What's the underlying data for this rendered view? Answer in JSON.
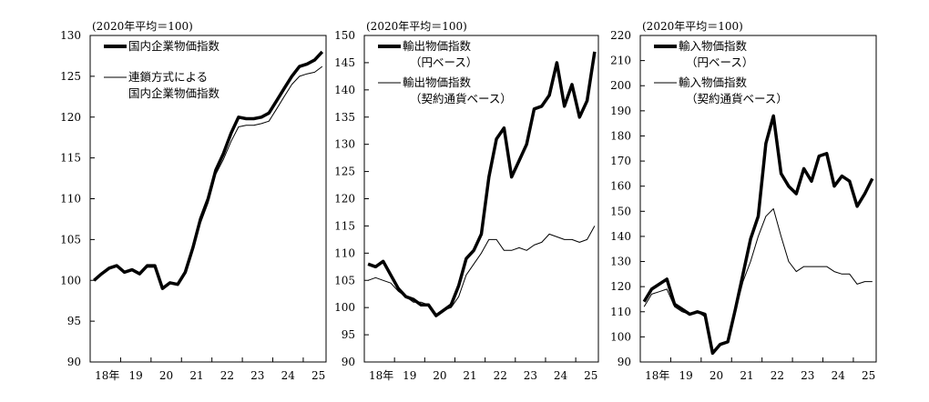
{
  "chart_data": [
    {
      "type": "line",
      "unit_note": "(2020年平均＝100)",
      "ylim": [
        90,
        130
      ],
      "yticks": [
        90,
        95,
        100,
        105,
        110,
        115,
        120,
        125,
        130
      ],
      "xtick_labels": [
        "18年",
        "19",
        "20",
        "21",
        "22",
        "23",
        "24",
        "25"
      ],
      "x": [
        "2018Q1",
        "2018Q2",
        "2018Q3",
        "2018Q4",
        "2019Q1",
        "2019Q2",
        "2019Q3",
        "2019Q4",
        "2020Q1",
        "2020Q2",
        "2020Q3",
        "2020Q4",
        "2021Q1",
        "2021Q2",
        "2021Q3",
        "2021Q4",
        "2022Q1",
        "2022Q2",
        "2022Q3",
        "2022Q4",
        "2023Q1",
        "2023Q2",
        "2023Q3",
        "2023Q4",
        "2024Q1",
        "2024Q2",
        "2024Q3",
        "2024Q4",
        "2025Q1",
        "2025Q2",
        "2025Q3"
      ],
      "series": [
        {
          "name": "国内企業物価指数",
          "style": "thick",
          "values": [
            100,
            100.8,
            101.5,
            101.8,
            101,
            101.3,
            100.8,
            101.8,
            101.8,
            99,
            99.7,
            99.5,
            101,
            104,
            107.5,
            110,
            113.5,
            115.5,
            118,
            120,
            119.8,
            119.8,
            120,
            120.5,
            122,
            123.5,
            125,
            126.2,
            126.5,
            127,
            128
          ]
        },
        {
          "name": "連鎖方式による\n国内企業物価指数",
          "name_lines": [
            "連鎖方式による",
            "国内企業物価指数"
          ],
          "style": "thin",
          "values": [
            100,
            100.7,
            101.4,
            101.7,
            100.9,
            101.2,
            100.7,
            101.6,
            101.6,
            98.9,
            99.6,
            99.4,
            100.8,
            103.7,
            107,
            109.5,
            113,
            114.8,
            117,
            118.8,
            119,
            119,
            119.2,
            119.5,
            121,
            122.5,
            124,
            125,
            125.3,
            125.5,
            126.2
          ]
        }
      ],
      "grid": false,
      "legend": "top-left"
    },
    {
      "type": "line",
      "unit_note": "(2020年平均＝100)",
      "ylim": [
        90,
        150
      ],
      "yticks": [
        90,
        95,
        100,
        105,
        110,
        115,
        120,
        125,
        130,
        135,
        140,
        145,
        150
      ],
      "xtick_labels": [
        "18年",
        "19",
        "20",
        "21",
        "22",
        "23",
        "24",
        "25"
      ],
      "x": [
        "2018Q1",
        "2018Q2",
        "2018Q3",
        "2018Q4",
        "2019Q1",
        "2019Q2",
        "2019Q3",
        "2019Q4",
        "2020Q1",
        "2020Q2",
        "2020Q3",
        "2020Q4",
        "2021Q1",
        "2021Q2",
        "2021Q3",
        "2021Q4",
        "2022Q1",
        "2022Q2",
        "2022Q3",
        "2022Q4",
        "2023Q1",
        "2023Q2",
        "2023Q3",
        "2023Q4",
        "2024Q1",
        "2024Q2",
        "2024Q3",
        "2024Q4",
        "2025Q1",
        "2025Q2",
        "2025Q3"
      ],
      "series": [
        {
          "name": "輸出物価指数（円ベース）",
          "name_lines": [
            "輸出物価指数",
            "（円ベース）"
          ],
          "style": "thick",
          "values": [
            108,
            107.5,
            108.5,
            106,
            103.5,
            102,
            101.5,
            100.5,
            100.5,
            98.5,
            99.5,
            100.5,
            104,
            109,
            110.5,
            113.5,
            124,
            131,
            133,
            124,
            127,
            130,
            136.5,
            137,
            139,
            145,
            137,
            141,
            135,
            138,
            147
          ]
        },
        {
          "name": "輸出物価指数（契約通貨ベース）",
          "name_lines": [
            "輸出物価指数",
            "（契約通貨ベース）"
          ],
          "style": "thin",
          "values": [
            105,
            105.5,
            105,
            104.5,
            103,
            102,
            101,
            101,
            100.5,
            98.8,
            99.5,
            100,
            102,
            106,
            108,
            110,
            112.5,
            112.5,
            110.5,
            110.5,
            111,
            110.5,
            111.5,
            112,
            113.5,
            113,
            112.5,
            112.5,
            112,
            112.5,
            115
          ]
        }
      ],
      "grid": false,
      "legend": "top-left"
    },
    {
      "type": "line",
      "unit_note": "(2020年平均＝100)",
      "ylim": [
        90,
        220
      ],
      "yticks": [
        90,
        100,
        110,
        120,
        130,
        140,
        150,
        160,
        170,
        180,
        190,
        200,
        210,
        220
      ],
      "xtick_labels": [
        "18年",
        "19",
        "20",
        "21",
        "22",
        "23",
        "24",
        "25"
      ],
      "x": [
        "2018Q1",
        "2018Q2",
        "2018Q3",
        "2018Q4",
        "2019Q1",
        "2019Q2",
        "2019Q3",
        "2019Q4",
        "2020Q1",
        "2020Q2",
        "2020Q3",
        "2020Q4",
        "2021Q1",
        "2021Q2",
        "2021Q3",
        "2021Q4",
        "2022Q1",
        "2022Q2",
        "2022Q3",
        "2022Q4",
        "2023Q1",
        "2023Q2",
        "2023Q3",
        "2023Q4",
        "2024Q1",
        "2024Q2",
        "2024Q3",
        "2024Q4",
        "2025Q1",
        "2025Q2",
        "2025Q3"
      ],
      "series": [
        {
          "name": "輸入物価指数（円ベース）",
          "name_lines": [
            "輸入物価指数",
            "（円ベース）"
          ],
          "style": "thick",
          "values": [
            114,
            119,
            121,
            123,
            113,
            111,
            109,
            110,
            109,
            93.5,
            97,
            98,
            111,
            125,
            139,
            148,
            177,
            188,
            165,
            160,
            157,
            167,
            162,
            172,
            173,
            160,
            164,
            162,
            152,
            157,
            163
          ]
        },
        {
          "name": "輸入物価指数（契約通貨ベース）",
          "name_lines": [
            "輸入物価指数",
            "（契約通貨ベース）"
          ],
          "style": "thin",
          "values": [
            112,
            117,
            118,
            119,
            112,
            110,
            109,
            110,
            108,
            94,
            97,
            98,
            110,
            122,
            130,
            140,
            148,
            151,
            140,
            130,
            126,
            128,
            128,
            128,
            128,
            126,
            125,
            125,
            121,
            122,
            122
          ]
        }
      ],
      "grid": false,
      "legend": "top-left"
    }
  ]
}
